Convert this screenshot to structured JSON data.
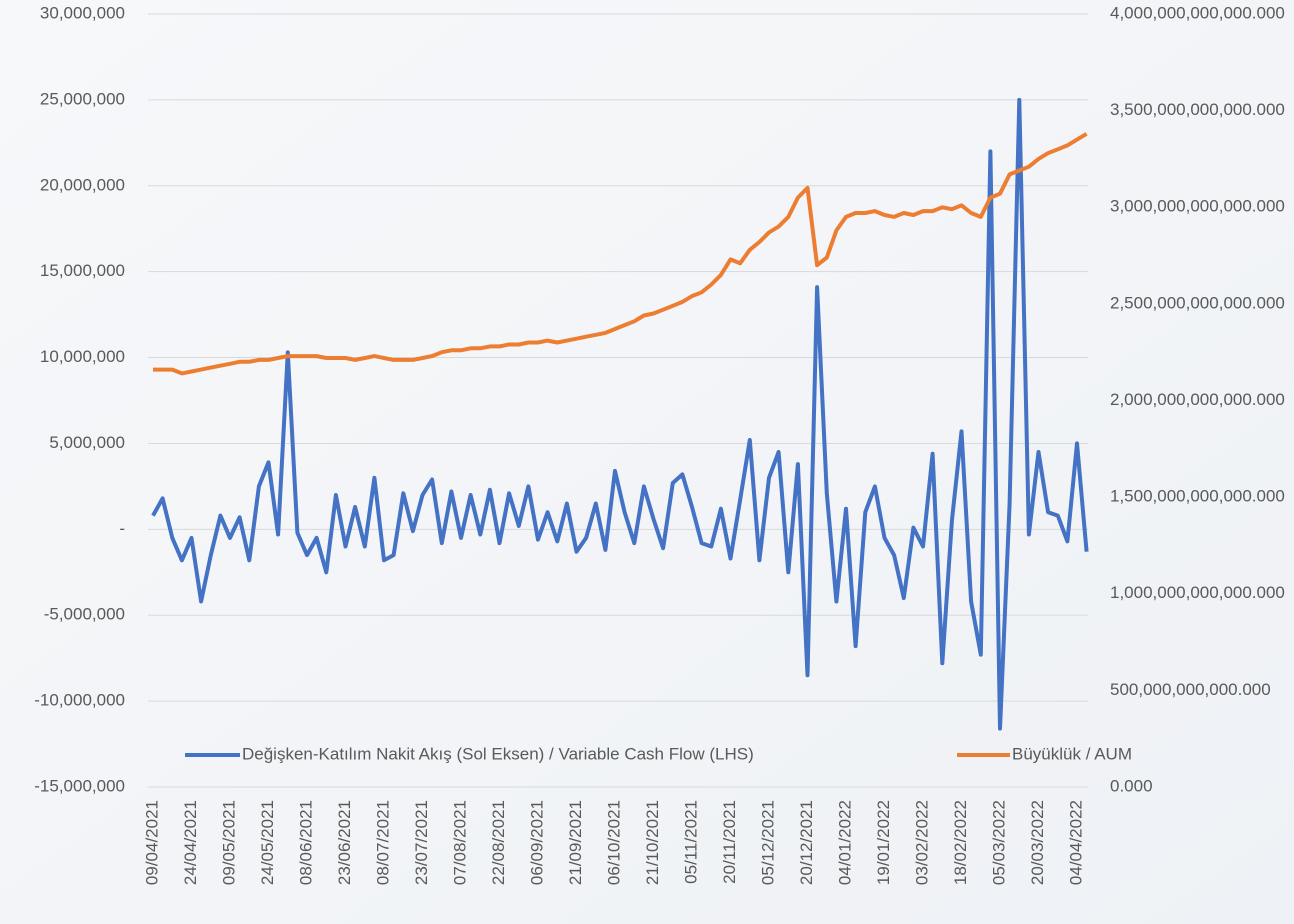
{
  "chart_data": {
    "type": "line",
    "categories": [
      "09/04/2021",
      null,
      null,
      null,
      "24/04/2021",
      null,
      null,
      null,
      "09/05/2021",
      null,
      null,
      null,
      "24/05/2021",
      null,
      null,
      null,
      "08/06/2021",
      null,
      null,
      null,
      "23/06/2021",
      null,
      null,
      null,
      "08/07/2021",
      null,
      null,
      null,
      "23/07/2021",
      null,
      null,
      null,
      "07/08/2021",
      null,
      null,
      null,
      "22/08/2021",
      null,
      null,
      null,
      "06/09/2021",
      null,
      null,
      null,
      "21/09/2021",
      null,
      null,
      null,
      "06/10/2021",
      null,
      null,
      null,
      "21/10/2021",
      null,
      null,
      null,
      "05/11/2021",
      null,
      null,
      null,
      "20/11/2021",
      null,
      null,
      null,
      "05/12/2021",
      null,
      null,
      null,
      "20/12/2021",
      null,
      null,
      null,
      "04/01/2022",
      null,
      null,
      null,
      "19/01/2022",
      null,
      null,
      null,
      "03/02/2022",
      null,
      null,
      null,
      "18/02/2022",
      null,
      null,
      null,
      "05/03/2022",
      null,
      null,
      null,
      "20/03/2022",
      null,
      null,
      null,
      "04/04/2022",
      null
    ],
    "series": [
      {
        "name": "Değişken-Katılım Nakit Akış (Sol Eksen) / Variable Cash Flow (LHS)",
        "color": "#4472c4",
        "axis": "y",
        "values": [
          800000,
          1800000,
          -500000,
          -1800000,
          -500000,
          -4200000,
          -1500000,
          800000,
          -500000,
          700000,
          -1800000,
          2500000,
          3900000,
          -300000,
          10300000,
          -200000,
          -1500000,
          -500000,
          -2500000,
          2000000,
          -1000000,
          1300000,
          -1000000,
          3000000,
          -1800000,
          -1500000,
          2100000,
          -100000,
          2000000,
          2900000,
          -800000,
          2200000,
          -500000,
          2000000,
          -300000,
          2300000,
          -800000,
          2100000,
          200000,
          2500000,
          -600000,
          1000000,
          -700000,
          1500000,
          -1300000,
          -500000,
          1500000,
          -1200000,
          3400000,
          1000000,
          -800000,
          2500000,
          600000,
          -1100000,
          2700000,
          3200000,
          1300000,
          -800000,
          -1000000,
          1200000,
          -1700000,
          1700000,
          5200000,
          -1800000,
          3000000,
          4500000,
          -2500000,
          3800000,
          -8500000,
          14100000,
          2100000,
          -4200000,
          1200000,
          -6800000,
          1000000,
          2500000,
          -500000,
          -1500000,
          -4000000,
          100000,
          -1000000,
          4400000,
          -7800000,
          500000,
          5700000,
          -4200000,
          -7300000,
          22000000,
          -11600000,
          1500000,
          25000000,
          -300000,
          4500000,
          1000000,
          800000,
          -700000,
          5000000,
          -1300000
        ]
      },
      {
        "name": "Büyüklük / AUM",
        "color": "#ed7d31",
        "axis": "y2",
        "values": [
          2160000000000,
          2160000000000,
          2160000000000,
          2140000000000,
          2150000000000,
          2160000000000,
          2170000000000,
          2180000000000,
          2190000000000,
          2200000000000,
          2200000000000,
          2210000000000,
          2210000000000,
          2220000000000,
          2230000000000,
          2230000000000,
          2230000000000,
          2230000000000,
          2220000000000,
          2220000000000,
          2220000000000,
          2210000000000,
          2220000000000,
          2230000000000,
          2220000000000,
          2210000000000,
          2210000000000,
          2210000000000,
          2220000000000,
          2230000000000,
          2250000000000,
          2260000000000,
          2260000000000,
          2270000000000,
          2270000000000,
          2280000000000,
          2280000000000,
          2290000000000,
          2290000000000,
          2300000000000,
          2300000000000,
          2310000000000,
          2300000000000,
          2310000000000,
          2320000000000,
          2330000000000,
          2340000000000,
          2350000000000,
          2370000000000,
          2390000000000,
          2410000000000,
          2440000000000,
          2450000000000,
          2470000000000,
          2490000000000,
          2510000000000,
          2540000000000,
          2560000000000,
          2600000000000,
          2650000000000,
          2730000000000,
          2710000000000,
          2780000000000,
          2820000000000,
          2870000000000,
          2900000000000,
          2950000000000,
          3050000000000,
          3100000000000,
          2700000000000,
          2740000000000,
          2880000000000,
          2950000000000,
          2970000000000,
          2970000000000,
          2980000000000,
          2960000000000,
          2950000000000,
          2970000000000,
          2960000000000,
          2980000000000,
          2980000000000,
          3000000000000,
          2990000000000,
          3010000000000,
          2970000000000,
          2950000000000,
          3050000000000,
          3070000000000,
          3170000000000,
          3190000000000,
          3210000000000,
          3250000000000,
          3280000000000,
          3300000000000,
          3320000000000,
          3350000000000,
          3380000000000
        ]
      }
    ],
    "ylim": [
      -15000000,
      30000000
    ],
    "yticks": [
      {
        "value": -15000000,
        "label": "-15,000,000"
      },
      {
        "value": -10000000,
        "label": "-10,000,000"
      },
      {
        "value": -5000000,
        "label": "-5,000,000"
      },
      {
        "value": 0,
        "label": "-"
      },
      {
        "value": 5000000,
        "label": "5,000,000"
      },
      {
        "value": 10000000,
        "label": "10,000,000"
      },
      {
        "value": 15000000,
        "label": "15,000,000"
      },
      {
        "value": 20000000,
        "label": "20,000,000"
      },
      {
        "value": 25000000,
        "label": "25,000,000"
      },
      {
        "value": 30000000,
        "label": "30,000,000"
      }
    ],
    "y2lim": [
      0,
      4000000000000
    ],
    "y2ticks": [
      {
        "value": 0,
        "label": "0.000"
      },
      {
        "value": 500000000000,
        "label": "500,000,000,000.000"
      },
      {
        "value": 1000000000000,
        "label": "1,000,000,000,000.000"
      },
      {
        "value": 1500000000000,
        "label": "1,500,000,000,000.000"
      },
      {
        "value": 2000000000000,
        "label": "2,000,000,000,000.000"
      },
      {
        "value": 2500000000000,
        "label": "2,500,000,000,000.000"
      },
      {
        "value": 3000000000000,
        "label": "3,000,000,000,000.000"
      },
      {
        "value": 3500000000000,
        "label": "3,500,000,000,000.000"
      },
      {
        "value": 4000000000000,
        "label": "4,000,000,000,000.000"
      }
    ],
    "grid": true,
    "legend": "bottom"
  }
}
